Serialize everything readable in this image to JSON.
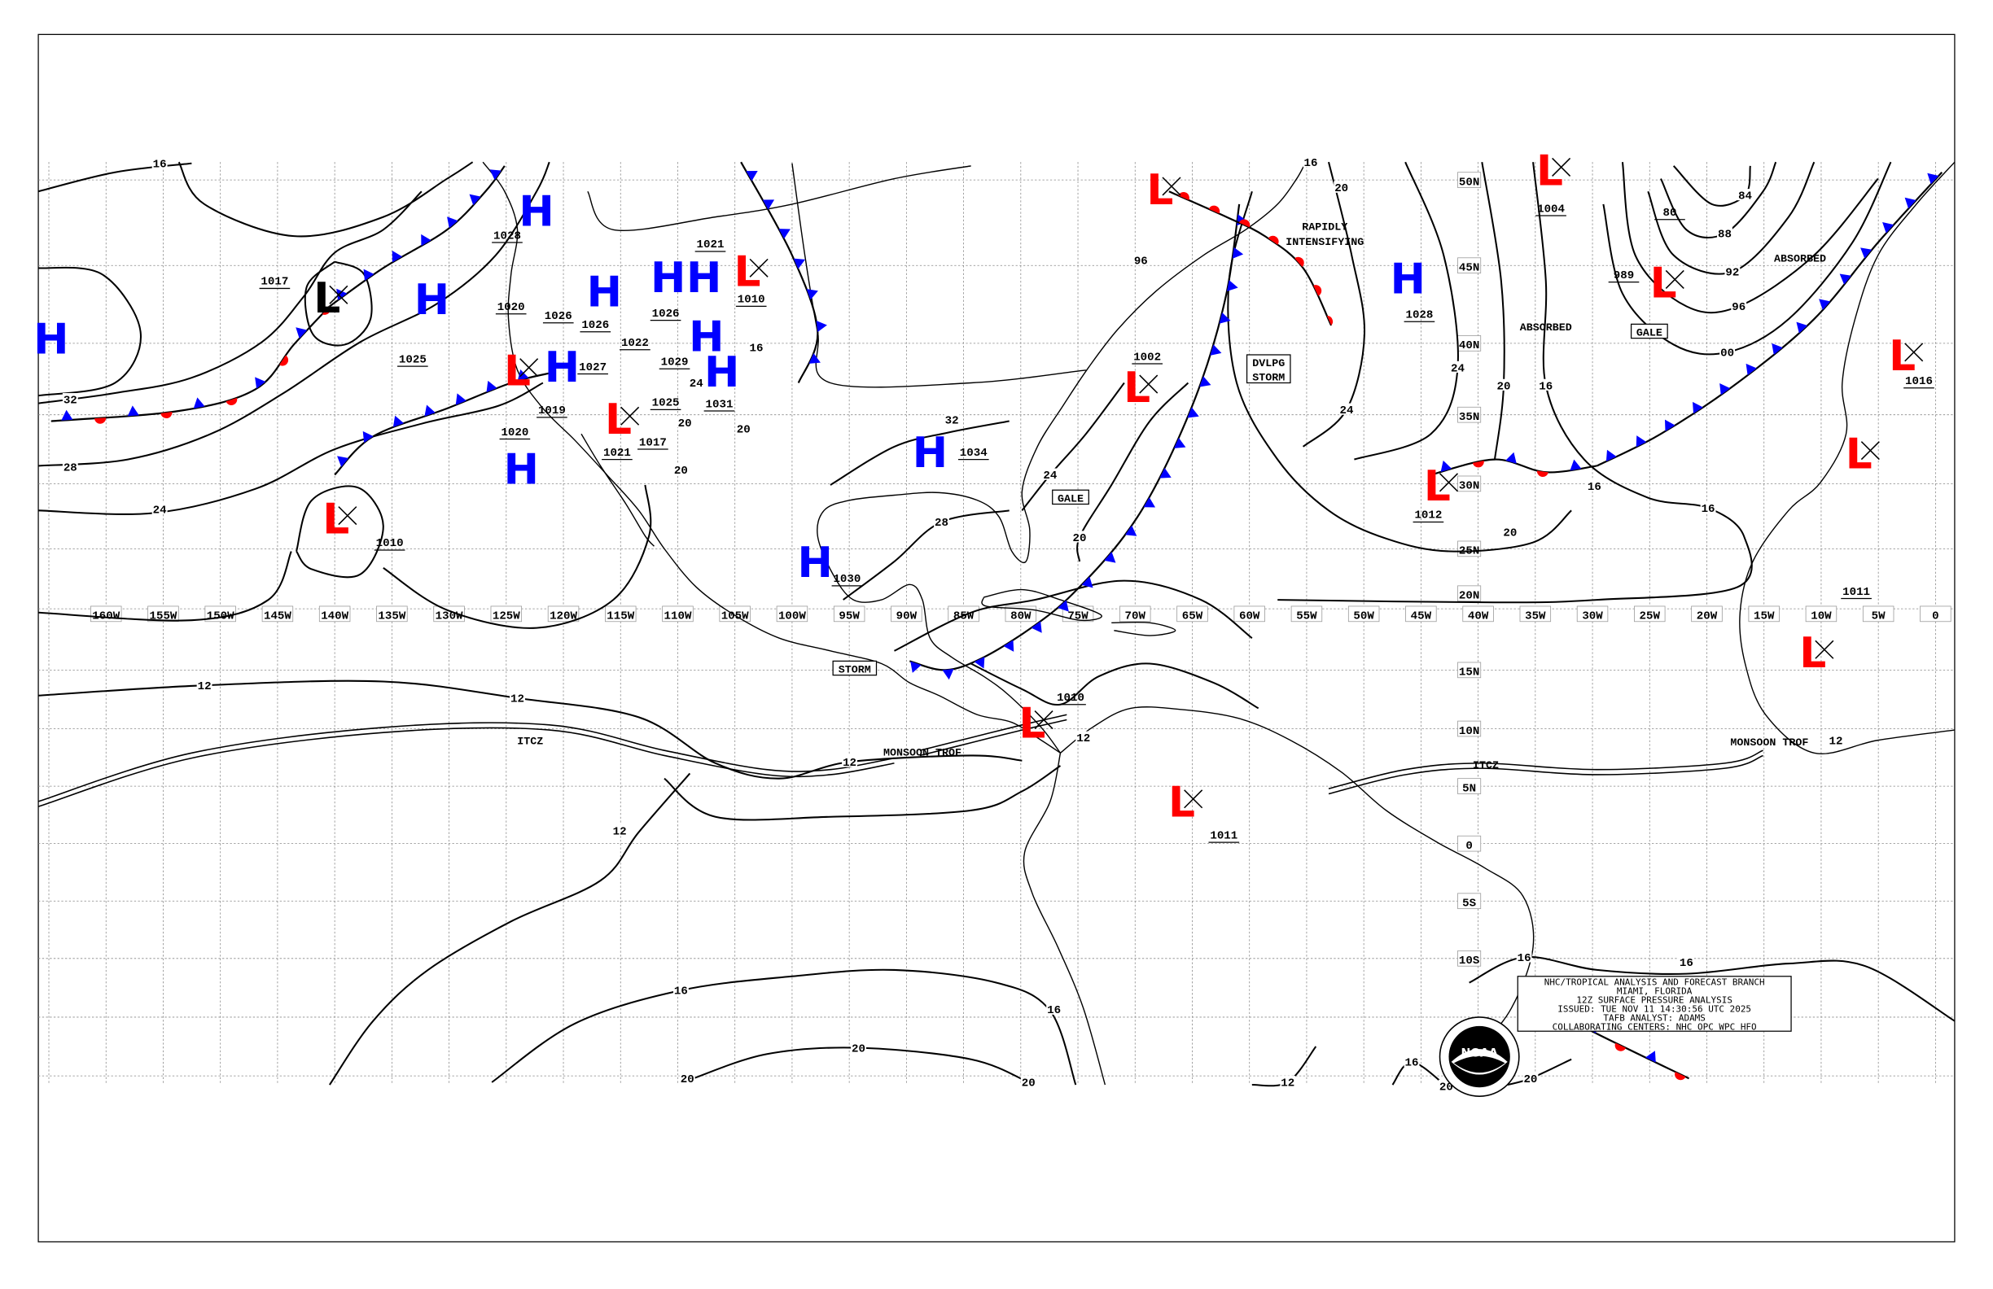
{
  "colors": {
    "high": "#0000ff",
    "low": "#ff0000",
    "cold_front": "#0000ff",
    "warm_front": "#ff0000",
    "isobar": "#000000",
    "grid": "#888888"
  },
  "grid": {
    "longitudes": [
      "160W",
      "155W",
      "150W",
      "145W",
      "140W",
      "135W",
      "130W",
      "125W",
      "120W",
      "115W",
      "110W",
      "105W",
      "100W",
      "95W",
      "90W",
      "85W",
      "80W",
      "75W",
      "70W",
      "65W",
      "60W",
      "55W",
      "50W",
      "45W",
      "40W",
      "35W",
      "30W",
      "25W",
      "20W",
      "15W",
      "10W",
      "5W",
      "0"
    ],
    "latitudes": [
      "50N",
      "45N",
      "40N",
      "35N",
      "30N",
      "25N",
      "20N",
      "15N",
      "10N",
      "5N",
      "0",
      "5S",
      "10S"
    ]
  },
  "centers": [
    {
      "symbol": "H",
      "kind": "high"
    },
    {
      "symbol": "L",
      "kind": "low-black"
    },
    {
      "symbol": "H",
      "kind": "high"
    },
    {
      "symbol": "H",
      "kind": "high"
    },
    {
      "symbol": "H",
      "kind": "high"
    },
    {
      "symbol": "H",
      "kind": "high"
    },
    {
      "symbol": "H",
      "kind": "high"
    },
    {
      "symbol": "L",
      "kind": "low"
    },
    {
      "symbol": "H",
      "kind": "high"
    },
    {
      "symbol": "H",
      "kind": "high"
    },
    {
      "symbol": "L",
      "kind": "low"
    },
    {
      "symbol": "L",
      "kind": "low"
    },
    {
      "symbol": "H",
      "kind": "high"
    },
    {
      "symbol": "H",
      "kind": "high"
    },
    {
      "symbol": "L",
      "kind": "low"
    },
    {
      "symbol": "H",
      "kind": "high"
    },
    {
      "symbol": "H",
      "kind": "high"
    },
    {
      "symbol": "L",
      "kind": "low"
    },
    {
      "symbol": "L",
      "kind": "low"
    },
    {
      "symbol": "L",
      "kind": "low"
    },
    {
      "symbol": "L",
      "kind": "low"
    },
    {
      "symbol": "H",
      "kind": "high"
    },
    {
      "symbol": "L",
      "kind": "low"
    },
    {
      "symbol": "L",
      "kind": "low"
    },
    {
      "symbol": "L",
      "kind": "low"
    },
    {
      "symbol": "L",
      "kind": "low"
    },
    {
      "symbol": "L",
      "kind": "low"
    },
    {
      "symbol": "L",
      "kind": "low"
    }
  ],
  "pressure_labels": [
    "1017",
    "1025",
    "1028",
    "1020",
    "1026",
    "1026",
    "1022",
    "1026",
    "1021",
    "1010",
    "1029",
    "1027",
    "1031",
    "1025",
    "1017",
    "1020",
    "1019",
    "1021",
    "1010",
    "1034",
    "1030",
    "1010",
    "1011",
    "1002",
    "1028",
    "1004",
    "989",
    "80",
    "1016",
    "1012",
    "1011"
  ],
  "isobar_labels": [
    "16",
    "32",
    "28",
    "24",
    "12",
    "12",
    "12",
    "12",
    "16",
    "20",
    "20",
    "20",
    "16",
    "24",
    "20",
    "16",
    "24",
    "20",
    "16",
    "16",
    "84",
    "88",
    "92",
    "96",
    "00",
    "32",
    "28",
    "24",
    "20",
    "16",
    "20",
    "96",
    "20",
    "20",
    "16",
    "12",
    "16",
    "16",
    "12",
    "12",
    "20",
    "24",
    "16",
    "20",
    "20"
  ],
  "annotations": [
    {
      "text": "RAPIDLY",
      "boxed": false
    },
    {
      "text": "INTENSIFYING",
      "boxed": false
    },
    {
      "text": "DVLPG",
      "boxed": true
    },
    {
      "text": "STORM",
      "boxed": false
    },
    {
      "text": "GALE",
      "boxed": true
    },
    {
      "text": "STORM",
      "boxed": true
    },
    {
      "text": "GALE",
      "boxed": true
    },
    {
      "text": "ABSORBED",
      "boxed": false
    },
    {
      "text": "ABSORBED",
      "boxed": false
    },
    {
      "text": "MONSOON TROF",
      "boxed": false
    },
    {
      "text": "MONSOON TROF",
      "boxed": false
    },
    {
      "text": "ITCZ",
      "boxed": false
    },
    {
      "text": "ITCZ",
      "boxed": false
    }
  ],
  "fronts": [
    {
      "type": "stationary"
    },
    {
      "type": "cold"
    },
    {
      "type": "cold"
    },
    {
      "type": "cold"
    },
    {
      "type": "warm"
    },
    {
      "type": "stationary"
    },
    {
      "type": "cold"
    },
    {
      "type": "stationary"
    },
    {
      "type": "cold"
    }
  ],
  "info_box": {
    "line1": "NHC/TROPICAL ANALYSIS AND FORECAST BRANCH",
    "line2": "MIAMI, FLORIDA",
    "line3": "12Z SURFACE PRESSURE ANALYSIS",
    "line4": "ISSUED: TUE NOV 11 14:30:56 UTC 2025",
    "line5": "TAFB ANALYST: ADAMS",
    "line6": "COLLABORATING CENTERS: NHC OPC WPC HFO"
  },
  "logo": {
    "text": "NOAA"
  }
}
